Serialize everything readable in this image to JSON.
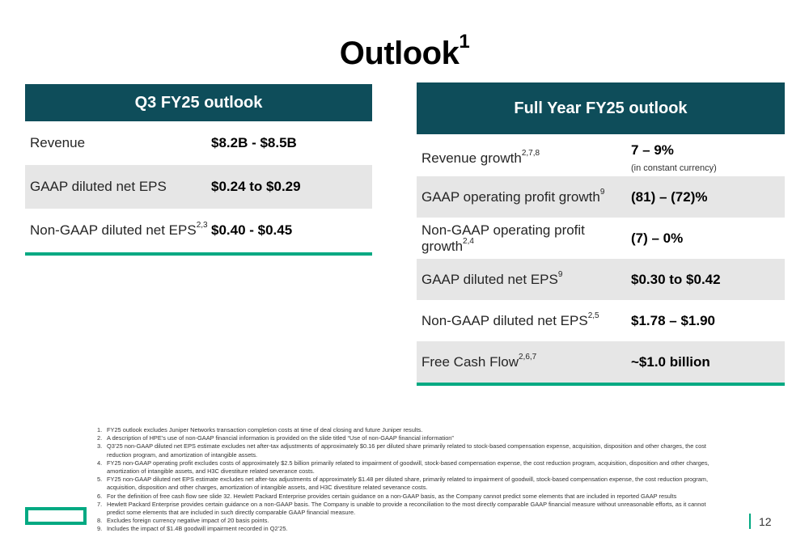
{
  "title": {
    "text": "Outlook",
    "sup": "1"
  },
  "q3": {
    "header": "Q3 FY25 outlook",
    "rows": [
      {
        "label": "Revenue",
        "sup": "",
        "value": "$8.2B - $8.5B"
      },
      {
        "label": "GAAP diluted net EPS",
        "sup": "",
        "value": "$0.24 to $0.29"
      },
      {
        "label": "Non-GAAP diluted net EPS",
        "sup": "2,3",
        "value": "$0.40 - $0.45"
      }
    ]
  },
  "fy": {
    "header": "Full Year FY25 outlook",
    "rows": [
      {
        "label": "Revenue growth",
        "sup": "2,7,8",
        "value": "7 – 9%",
        "note": "(in constant currency)"
      },
      {
        "label": "GAAP operating profit growth",
        "sup": "9",
        "value": "(81) – (72)%"
      },
      {
        "label": "Non-GAAP operating profit growth",
        "sup": "2,4",
        "value": "(7) – 0%"
      },
      {
        "label": "GAAP diluted net EPS",
        "sup": "9",
        "value": "$0.30 to $0.42"
      },
      {
        "label": "Non-GAAP diluted net EPS",
        "sup": "2,5",
        "value": "$1.78 – $1.90"
      },
      {
        "label": "Free Cash Flow",
        "sup": "2,6,7",
        "value": "~$1.0 billion"
      }
    ]
  },
  "footnotes": [
    {
      "n": "1.",
      "text": "FY25 outlook excludes Juniper Networks transaction completion costs at time of deal closing and future Juniper results."
    },
    {
      "n": "2.",
      "text": "A description of HPE’s use of non-GAAP financial information is provided on the slide titled “Use of non-GAAP financial information”"
    },
    {
      "n": "3.",
      "text": "Q3’25 non-GAAP diluted net EPS estimate excludes net after-tax adjustments of approximately $0.16 per diluted share primarily related to stock-based compensation expense, acquisition, disposition and other charges, the cost reduction program, and amortization of intangible assets."
    },
    {
      "n": "4.",
      "text": "FY25 non-GAAP operating profit excludes costs of approximately $2.5 billion primarily related to impairment of goodwill, stock-based compensation expense, the cost reduction program, acquisition, disposition and other charges, amortization of intangible assets, and H3C divestiture related severance costs."
    },
    {
      "n": "5.",
      "text": "FY25 non-GAAP diluted net EPS estimate excludes net after-tax adjustments of approximately $1.48 per diluted share, primarily related to impairment of goodwill, stock-based compensation expense, the cost reduction program, acquisition, disposition and other charges, amortization of intangible assets, and H3C divestiture related severance costs."
    },
    {
      "n": "6.",
      "text": "For the definition of free cash flow see slide 32. Hewlett Packard Enterprise provides certain guidance on a non-GAAP basis, as the Company cannot predict some elements that are included in reported GAAP results"
    },
    {
      "n": "7.",
      "text": "Hewlett Packard Enterprise provides certain guidance on a non-GAAP basis. The Company is unable to provide a reconciliation to the most directly comparable GAAP financial measure without unreasonable efforts, as it cannot predict some elements that are included in such directly comparable GAAP financial measure."
    },
    {
      "n": "8.",
      "text": "Excludes foreign currency negative impact of 20 basis points."
    },
    {
      "n": "9.",
      "text": "Includes the impact of $1.4B goodwill impairment recorded in Q2’25."
    }
  ],
  "page_number": "12",
  "colors": {
    "header_bg": "#0e4d5a",
    "accent": "#01a982",
    "row_shade": "#e6e6e6"
  }
}
